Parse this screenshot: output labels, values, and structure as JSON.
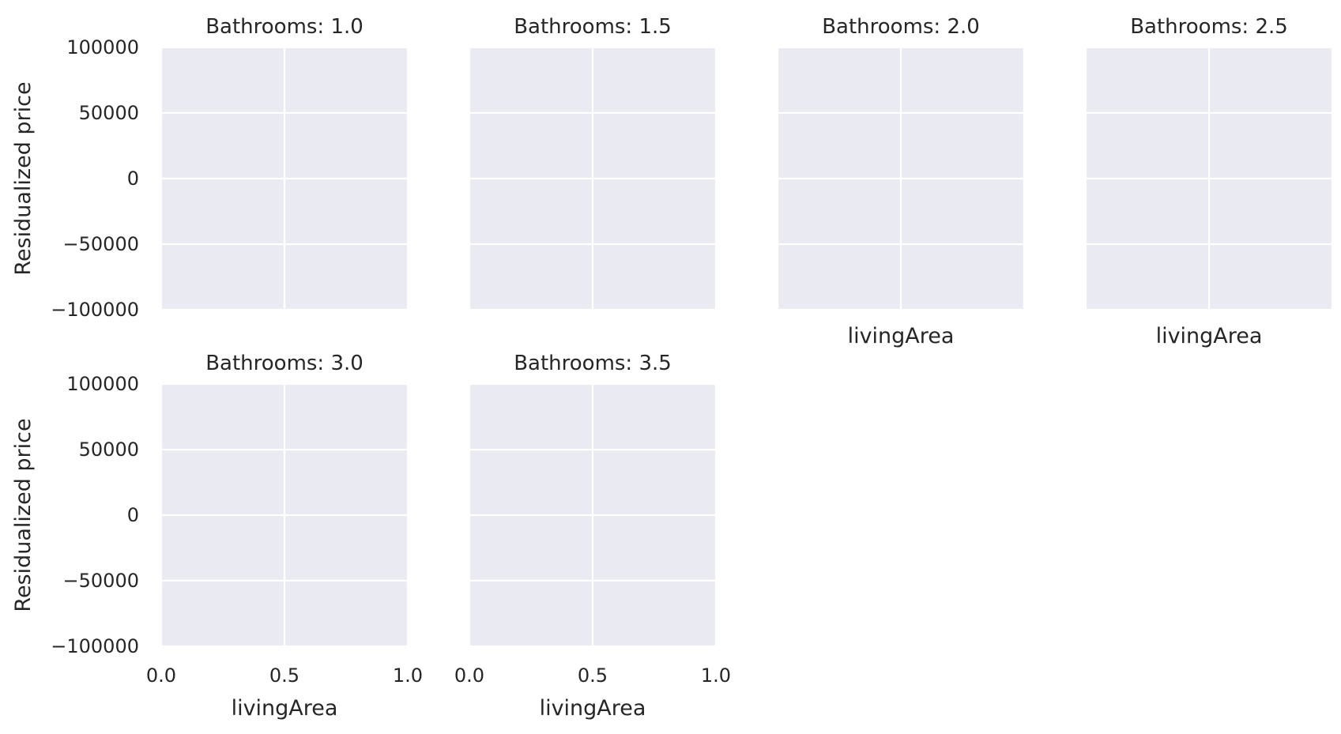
{
  "chart_data": {
    "type": "scatter",
    "layout": "facet-grid",
    "facet_variable": "Bathrooms",
    "shared_x": true,
    "shared_y": true,
    "xlabel": "livingArea",
    "ylabel": "Residualized price",
    "xlim": [
      0.0,
      1.0
    ],
    "ylim": [
      -100000,
      100000
    ],
    "x_ticks": [
      0.0,
      0.5,
      1.0
    ],
    "x_tick_labels": [
      "0.0",
      "0.5",
      "1.0"
    ],
    "y_ticks": [
      100000,
      50000,
      0,
      -50000,
      -100000
    ],
    "y_tick_labels": [
      "100000",
      "50000",
      "0",
      "−50000",
      "−100000"
    ],
    "grid": true,
    "panel_background": "#EAEAF2",
    "grid_color": "#FFFFFF",
    "text_color": "#262626",
    "facets": [
      {
        "title": "Bathrooms: 1.0",
        "points": []
      },
      {
        "title": "Bathrooms: 1.5",
        "points": []
      },
      {
        "title": "Bathrooms: 2.0",
        "points": []
      },
      {
        "title": "Bathrooms: 2.5",
        "points": []
      },
      {
        "title": "Bathrooms: 3.0",
        "points": []
      },
      {
        "title": "Bathrooms: 3.5",
        "points": []
      }
    ]
  }
}
